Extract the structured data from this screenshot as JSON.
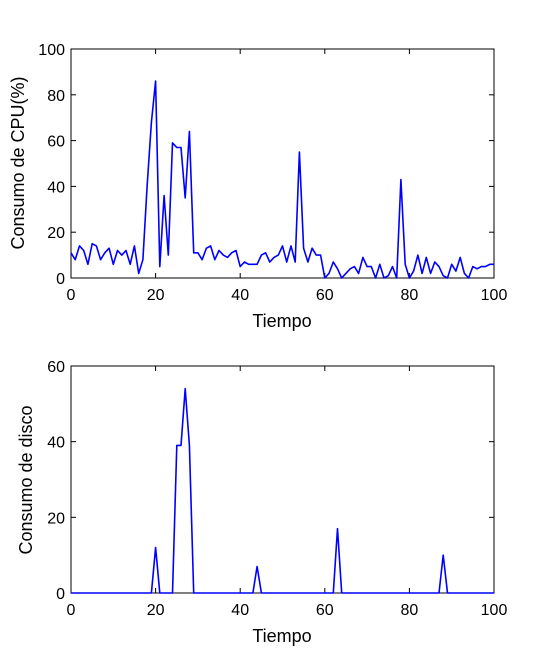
{
  "chart_data": [
    {
      "type": "line",
      "title": "",
      "xlabel": "Tiempo",
      "ylabel": "Consumo de CPU(%)",
      "xlim": [
        0,
        100
      ],
      "ylim": [
        0,
        100
      ],
      "xticks": [
        0,
        20,
        40,
        60,
        80,
        100
      ],
      "yticks": [
        0,
        20,
        40,
        60,
        80,
        100
      ],
      "grid": false,
      "series_color": "#0000ff",
      "series": [
        {
          "x": [
            0,
            1,
            2,
            3,
            4,
            5,
            6,
            7,
            8,
            9,
            10,
            11,
            12,
            13,
            14,
            15,
            16,
            17,
            18,
            19,
            20,
            21,
            22,
            23,
            24,
            25,
            26,
            27,
            28,
            29,
            30,
            31,
            32,
            33,
            34,
            35,
            36,
            37,
            38,
            39,
            40,
            41,
            42,
            43,
            44,
            45,
            46,
            47,
            48,
            49,
            50,
            51,
            52,
            53,
            54,
            55,
            56,
            57,
            58,
            59,
            60,
            61,
            62,
            63,
            64,
            65,
            66,
            67,
            68,
            69,
            70,
            71,
            72,
            73,
            74,
            75,
            76,
            77,
            78,
            79,
            80,
            81,
            82,
            83,
            84,
            85,
            86,
            87,
            88,
            89,
            90,
            91,
            92,
            93,
            94,
            95,
            96,
            97,
            98,
            99,
            100
          ],
          "y": [
            11,
            8,
            14,
            12,
            6,
            15,
            14,
            8,
            11,
            13,
            6,
            12,
            10,
            12,
            6,
            14,
            2,
            8,
            40,
            68,
            86,
            5,
            36,
            10,
            59,
            57,
            57,
            35,
            64,
            11,
            11,
            8,
            13,
            14,
            8,
            12,
            10,
            9,
            11,
            12,
            5,
            7,
            6,
            6,
            6,
            10,
            11,
            7,
            9,
            10,
            14,
            7,
            14,
            7,
            55,
            13,
            7,
            13,
            10,
            10,
            0,
            2,
            7,
            4,
            0,
            2,
            4,
            5,
            2,
            9,
            5,
            5,
            0,
            6,
            0,
            1,
            5,
            0,
            43,
            6,
            0,
            3,
            10,
            2,
            9,
            2,
            7,
            5,
            1,
            0,
            6,
            3,
            9,
            2,
            0,
            5,
            4,
            5,
            5,
            6,
            6
          ]
        }
      ]
    },
    {
      "type": "line",
      "title": "",
      "xlabel": "Tiempo",
      "ylabel": "Consumo de disco",
      "xlim": [
        0,
        100
      ],
      "ylim": [
        0,
        60
      ],
      "xticks": [
        0,
        20,
        40,
        60,
        80,
        100
      ],
      "yticks": [
        0,
        20,
        40,
        60
      ],
      "grid": false,
      "series_color": "#0000ff",
      "series": [
        {
          "x": [
            0,
            19,
            20,
            21,
            24,
            25,
            26,
            27,
            28,
            29,
            43,
            44,
            45,
            62,
            63,
            64,
            87,
            88,
            89,
            100
          ],
          "y": [
            0,
            0,
            12,
            0,
            0,
            39,
            39,
            54,
            39,
            0,
            0,
            7,
            0,
            0,
            17,
            0,
            0,
            10,
            0,
            0
          ]
        }
      ]
    }
  ]
}
